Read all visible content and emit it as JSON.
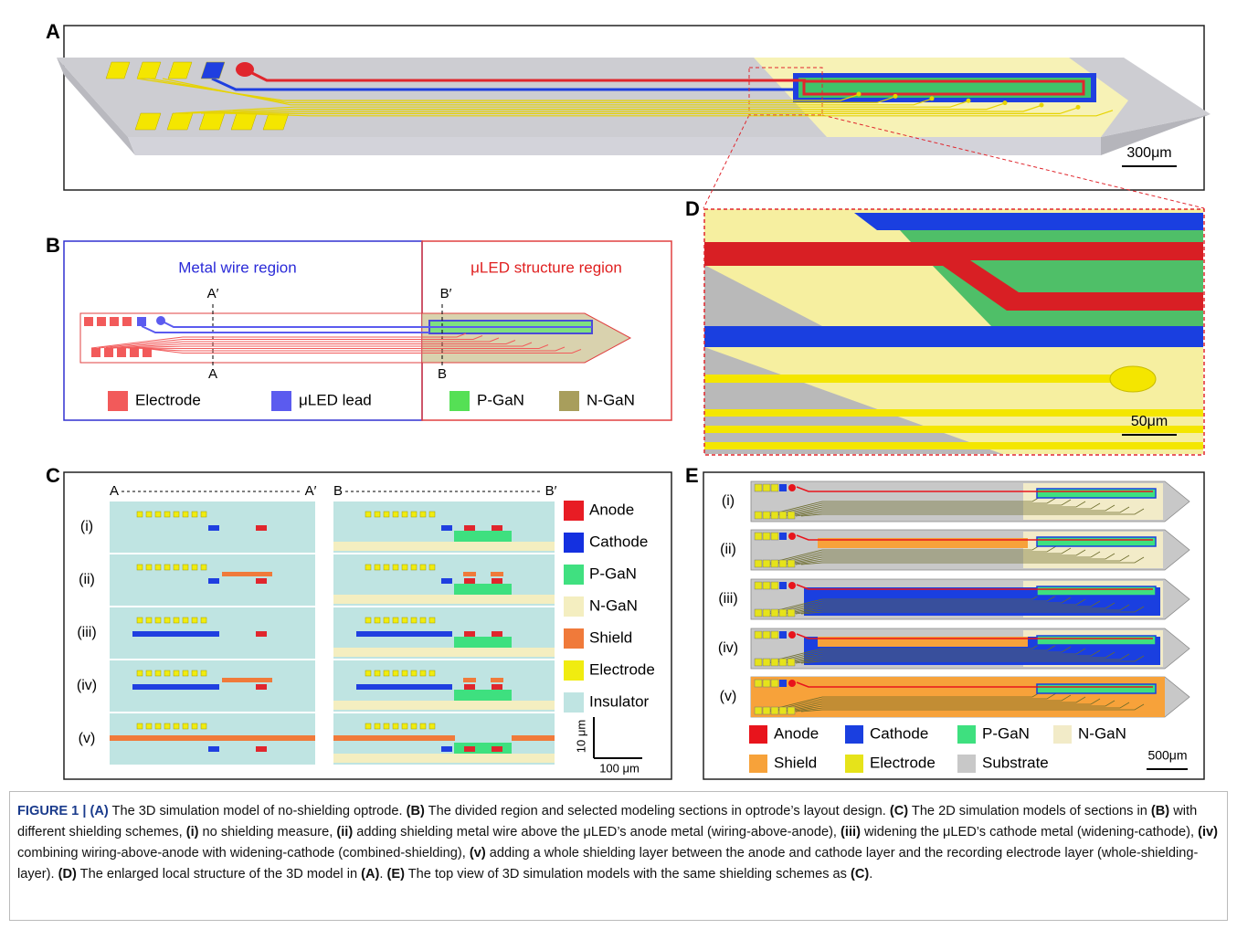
{
  "panel_a": {
    "label": "A",
    "scale": "300μm"
  },
  "panel_b": {
    "label": "B",
    "left_title": "Metal wire region",
    "right_title": "μLED structure region",
    "a_prime": "A′",
    "a": "A",
    "b_prime": "B′",
    "b": "B",
    "legend": [
      {
        "label": "Electrode",
        "color": "#f25a5a"
      },
      {
        "label": "μLED lead",
        "color": "#5b5bef"
      },
      {
        "label": "P-GaN",
        "color": "#55e055"
      },
      {
        "label": "N-GaN",
        "color": "#a89e5c"
      }
    ]
  },
  "panel_c": {
    "label": "C",
    "a": "A",
    "a_prime": "A′",
    "b": "B",
    "b_prime": "B′",
    "rows": [
      "(i)",
      "(ii)",
      "(iii)",
      "(iv)",
      "(v)"
    ],
    "legend": [
      {
        "label": "Anode",
        "color": "#e81c24"
      },
      {
        "label": "Cathode",
        "color": "#1430e0"
      },
      {
        "label": "P-GaN",
        "color": "#40e080"
      },
      {
        "label": "N-GaN",
        "color": "#f4eec0"
      },
      {
        "label": "Shield",
        "color": "#f07a3a"
      },
      {
        "label": "Electrode",
        "color": "#f0ec10"
      },
      {
        "label": "Insulator",
        "color": "#bfe4e2"
      }
    ],
    "scale_v": "10 μm",
    "scale_h": "100 μm"
  },
  "panel_d": {
    "label": "D",
    "scale": "50μm"
  },
  "panel_e": {
    "label": "E",
    "rows": [
      "(i)",
      "(ii)",
      "(iii)",
      "(iv)",
      "(v)"
    ],
    "legend": [
      {
        "label": "Anode",
        "color": "#e8141c"
      },
      {
        "label": "Cathode",
        "color": "#1a3fe0"
      },
      {
        "label": "P-GaN",
        "color": "#3ee07f"
      },
      {
        "label": "N-GaN",
        "color": "#f2ebc8"
      },
      {
        "label": "Shield",
        "color": "#f7a23a"
      },
      {
        "label": "Electrode",
        "color": "#e6e31a"
      },
      {
        "label": "Substrate",
        "color": "#c8c8c8"
      }
    ],
    "scale": "500μm"
  },
  "caption": [
    {
      "text": "FIGURE 1 | (A)",
      "bold": true
    },
    {
      "text": " The 3D simulation model of no-shielding optrode. "
    },
    {
      "text": "(B)",
      "bold": true
    },
    {
      "text": " The divided region and selected modeling sections in optrode’s layout design. "
    },
    {
      "text": "(C)",
      "bold": true
    },
    {
      "text": " The 2D simulation models of sections in "
    },
    {
      "text": "(B)",
      "bold": true
    },
    {
      "text": " with different shielding schemes, "
    },
    {
      "text": "(i)",
      "bold": true
    },
    {
      "text": " no shielding measure, "
    },
    {
      "text": "(ii)",
      "bold": true
    },
    {
      "text": " adding shielding metal wire above the μLED’s anode metal (wiring-above-anode), "
    },
    {
      "text": "(iii)",
      "bold": true
    },
    {
      "text": " widening the μLED’s cathode metal (widening-cathode), "
    },
    {
      "text": "(iv)",
      "bold": true
    },
    {
      "text": " combining wiring-above-anode with widening-cathode (combined-shielding), "
    },
    {
      "text": "(v)",
      "bold": true
    },
    {
      "text": " adding a whole shielding layer between the anode and cathode layer and the recording electrode layer (whole-shielding-layer). "
    },
    {
      "text": "(D)",
      "bold": true
    },
    {
      "text": " The enlarged local structure of the 3D model in "
    },
    {
      "text": "(A)",
      "bold": true
    },
    {
      "text": ". "
    },
    {
      "text": "(E)",
      "bold": true
    },
    {
      "text": " The top view of 3D simulation models with the same shielding schemes as "
    },
    {
      "text": "(C)",
      "bold": true
    },
    {
      "text": "."
    }
  ]
}
